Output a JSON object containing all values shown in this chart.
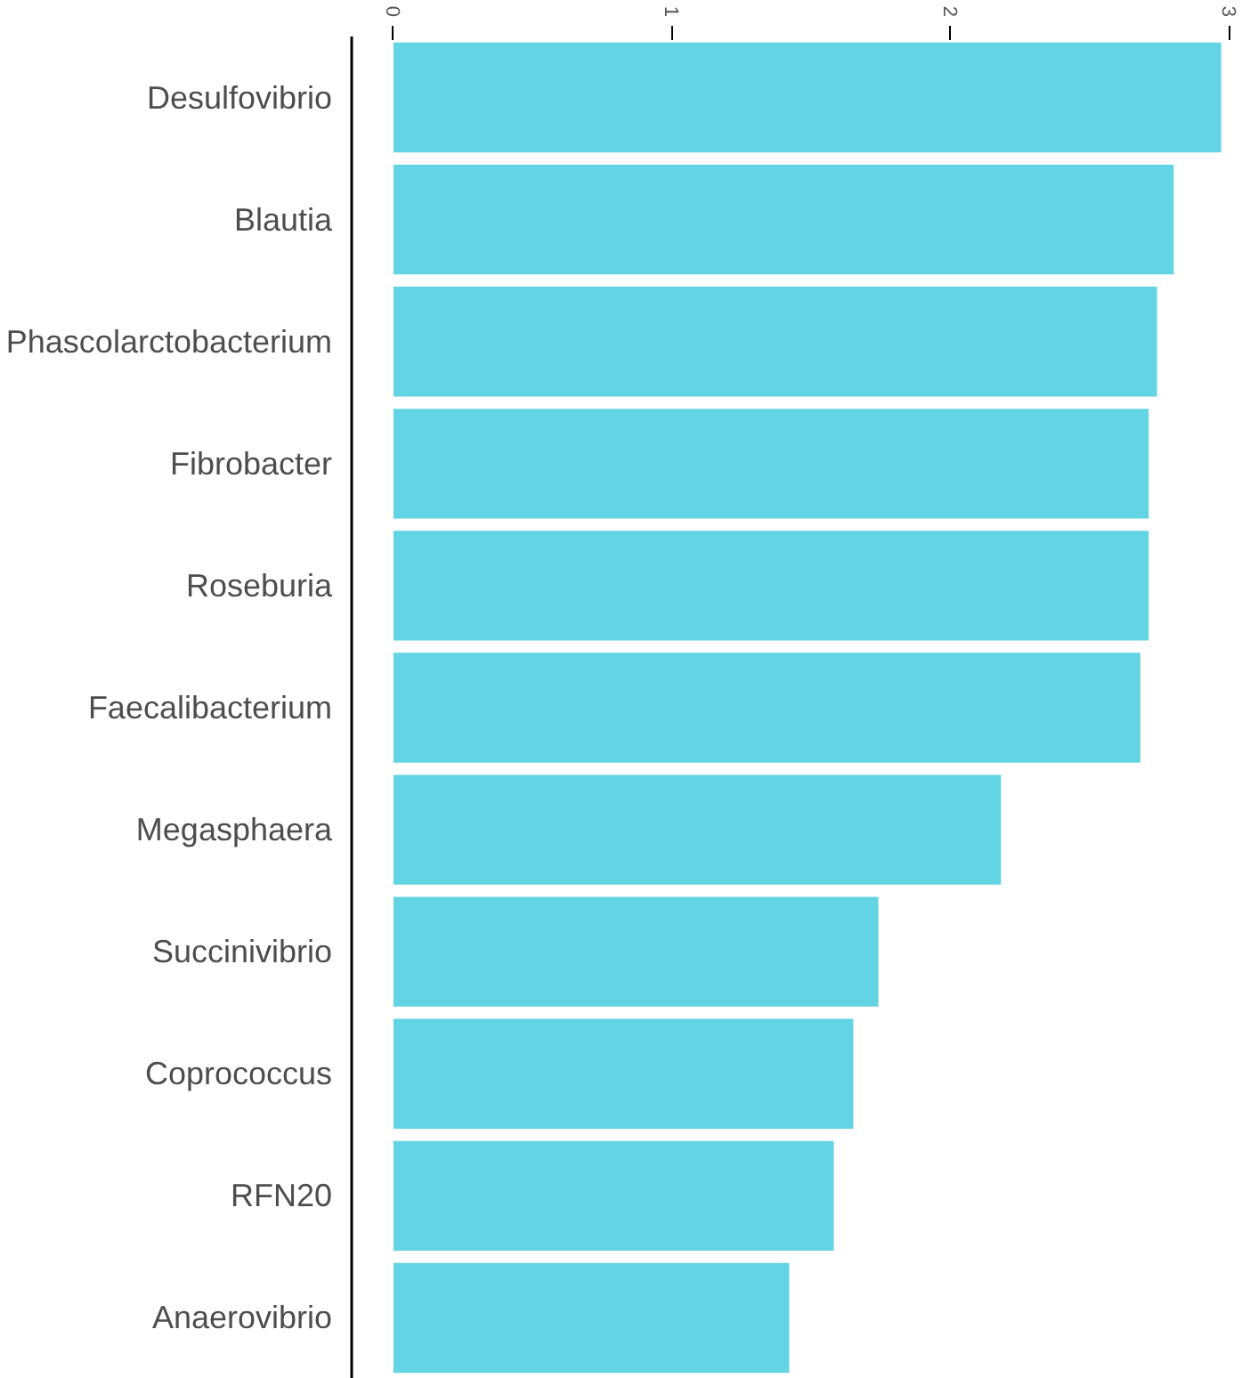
{
  "chart_data": {
    "type": "bar",
    "orientation": "horizontal",
    "categories": [
      "Desulfovibrio",
      "Blautia",
      "Phascolarctobacterium",
      "Fibrobacter",
      "Roseburia",
      "Faecalibacterium",
      "Megasphaera",
      "Succinivibrio",
      "Coprococcus",
      "RFN20",
      "Anaerovibrio"
    ],
    "values": [
      2.97,
      2.8,
      2.74,
      2.71,
      2.71,
      2.68,
      2.18,
      1.74,
      1.65,
      1.58,
      1.42
    ],
    "color": "#63d4e3",
    "xlim": [
      -0.15,
      3
    ],
    "xticks": [
      0,
      1,
      2,
      3
    ],
    "grid": false
  }
}
